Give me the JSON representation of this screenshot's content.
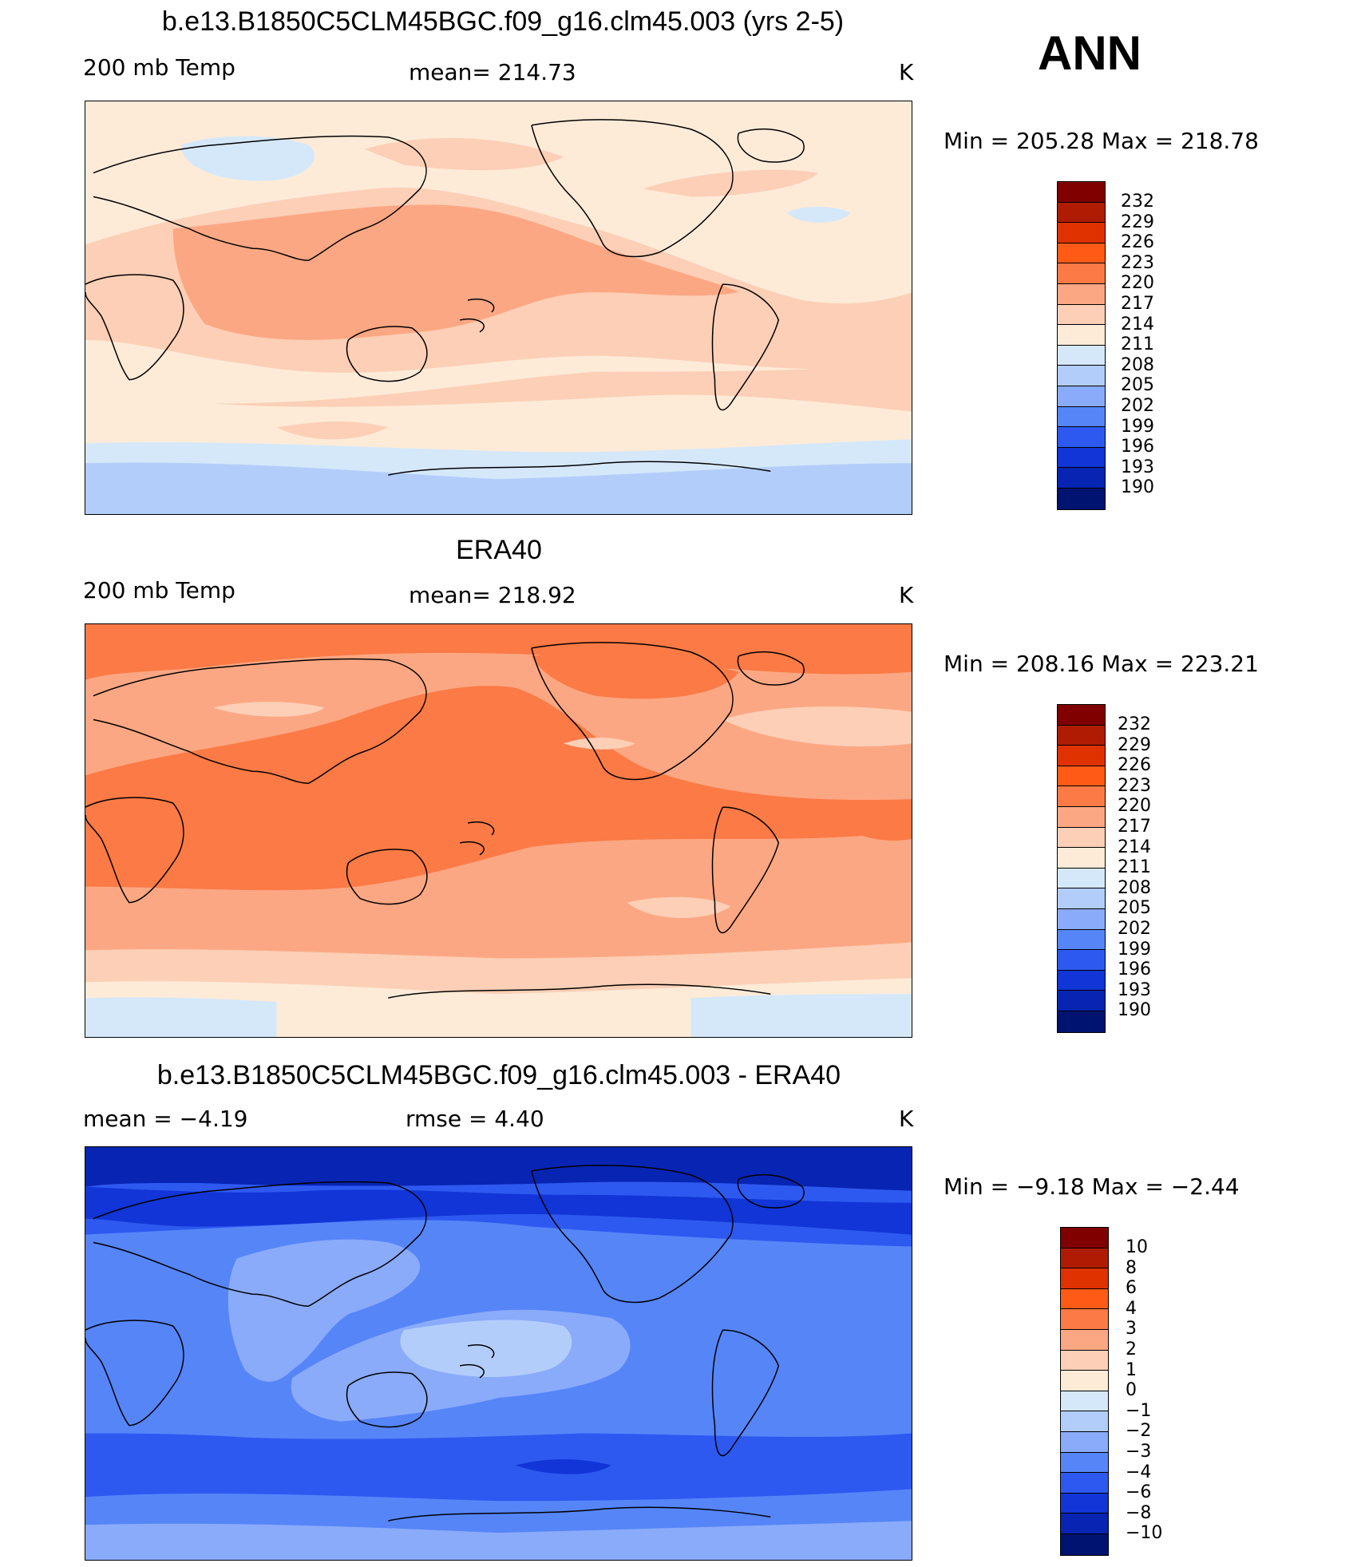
{
  "season": "ANN",
  "panels": [
    {
      "title": "b.e13.B1850C5CLM45BGC.f09_g16.clm45.003 (yrs 2-5)",
      "left_label": "200 mb Temp",
      "center_label": "mean= 214.73",
      "units": "K",
      "minmax": "Min  =  205.28  Max  =  218.78",
      "colorbar_labels": [
        "232",
        "229",
        "226",
        "223",
        "220",
        "217",
        "214",
        "211",
        "208",
        "205",
        "202",
        "199",
        "196",
        "193",
        "190"
      ],
      "background_level": "211-214"
    },
    {
      "title": "ERA40",
      "left_label": "200 mb Temp",
      "center_label": "mean= 218.92",
      "units": "K",
      "minmax": "Min  =  208.16  Max  =  223.21",
      "colorbar_labels": [
        "232",
        "229",
        "226",
        "223",
        "220",
        "217",
        "214",
        "211",
        "208",
        "205",
        "202",
        "199",
        "196",
        "193",
        "190"
      ],
      "background_level": "217-220"
    },
    {
      "title": "b.e13.B1850C5CLM45BGC.f09_g16.clm45.003 - ERA40",
      "left_label": "mean =    −4.19",
      "center_label": "rmse =     4.40",
      "units": "K",
      "minmax": "Min  =   −9.18  Max  =   −2.44",
      "colorbar_labels": [
        "10",
        "8",
        "6",
        "4",
        "3",
        "2",
        "1",
        "0",
        "−1",
        "−2",
        "−3",
        "−4",
        "−6",
        "−8",
        "−10"
      ],
      "background_level": "-6 to -4"
    }
  ],
  "colorbar_colors": [
    "#800000",
    "#b01c03",
    "#df3200",
    "#ff5a16",
    "#fb7a45",
    "#fca783",
    "#fccfb6",
    "#fdebd8",
    "#d5e8fa",
    "#b3cdfb",
    "#8aabfa",
    "#5685f8",
    "#2e59f0",
    "#1135d6",
    "#0724b3",
    "#001370"
  ]
}
